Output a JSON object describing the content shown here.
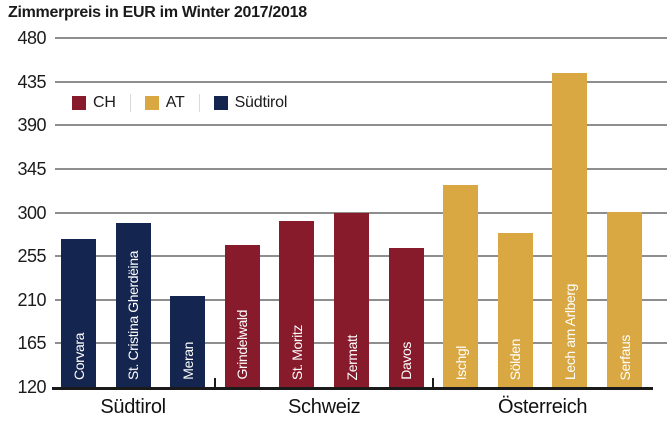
{
  "title": "Zimmerpreis in EUR im Winter 2017/2018",
  "legend": [
    {
      "label": "CH",
      "color": "#871A2B"
    },
    {
      "label": "AT",
      "color": "#D9A842"
    },
    {
      "label": "Südtirol",
      "color": "#14254F"
    }
  ],
  "chart_data": {
    "type": "bar",
    "title": "Zimmerpreis in EUR im Winter 2017/2018",
    "ylabel": "Zimmerpreis in EUR",
    "ylim": [
      120,
      480
    ],
    "y_ticks": [
      480,
      435,
      390,
      345,
      300,
      255,
      210,
      165,
      120
    ],
    "grid": true,
    "legend_position": "top-left-inside",
    "groups": [
      {
        "label": "Südtirol",
        "series": "Südtirol",
        "color": "#14254F",
        "bars": [
          {
            "label": "Corvara",
            "value": 273
          },
          {
            "label": "St. Cristina Gherdëina",
            "value": 289
          },
          {
            "label": "Meran",
            "value": 214
          }
        ]
      },
      {
        "label": "Schweiz",
        "series": "CH",
        "color": "#871A2B",
        "bars": [
          {
            "label": "Grindelwald",
            "value": 266
          },
          {
            "label": "St. Moritz",
            "value": 291
          },
          {
            "label": "Zermatt",
            "value": 300
          },
          {
            "label": "Davos",
            "value": 263
          }
        ]
      },
      {
        "label": "Österreich",
        "series": "AT",
        "color": "#D9A842",
        "bars": [
          {
            "label": "Ischgl",
            "value": 328
          },
          {
            "label": "Sölden",
            "value": 279
          },
          {
            "label": "Lech am Arlberg",
            "value": 444
          },
          {
            "label": "Serfaus",
            "value": 301
          }
        ]
      }
    ]
  }
}
